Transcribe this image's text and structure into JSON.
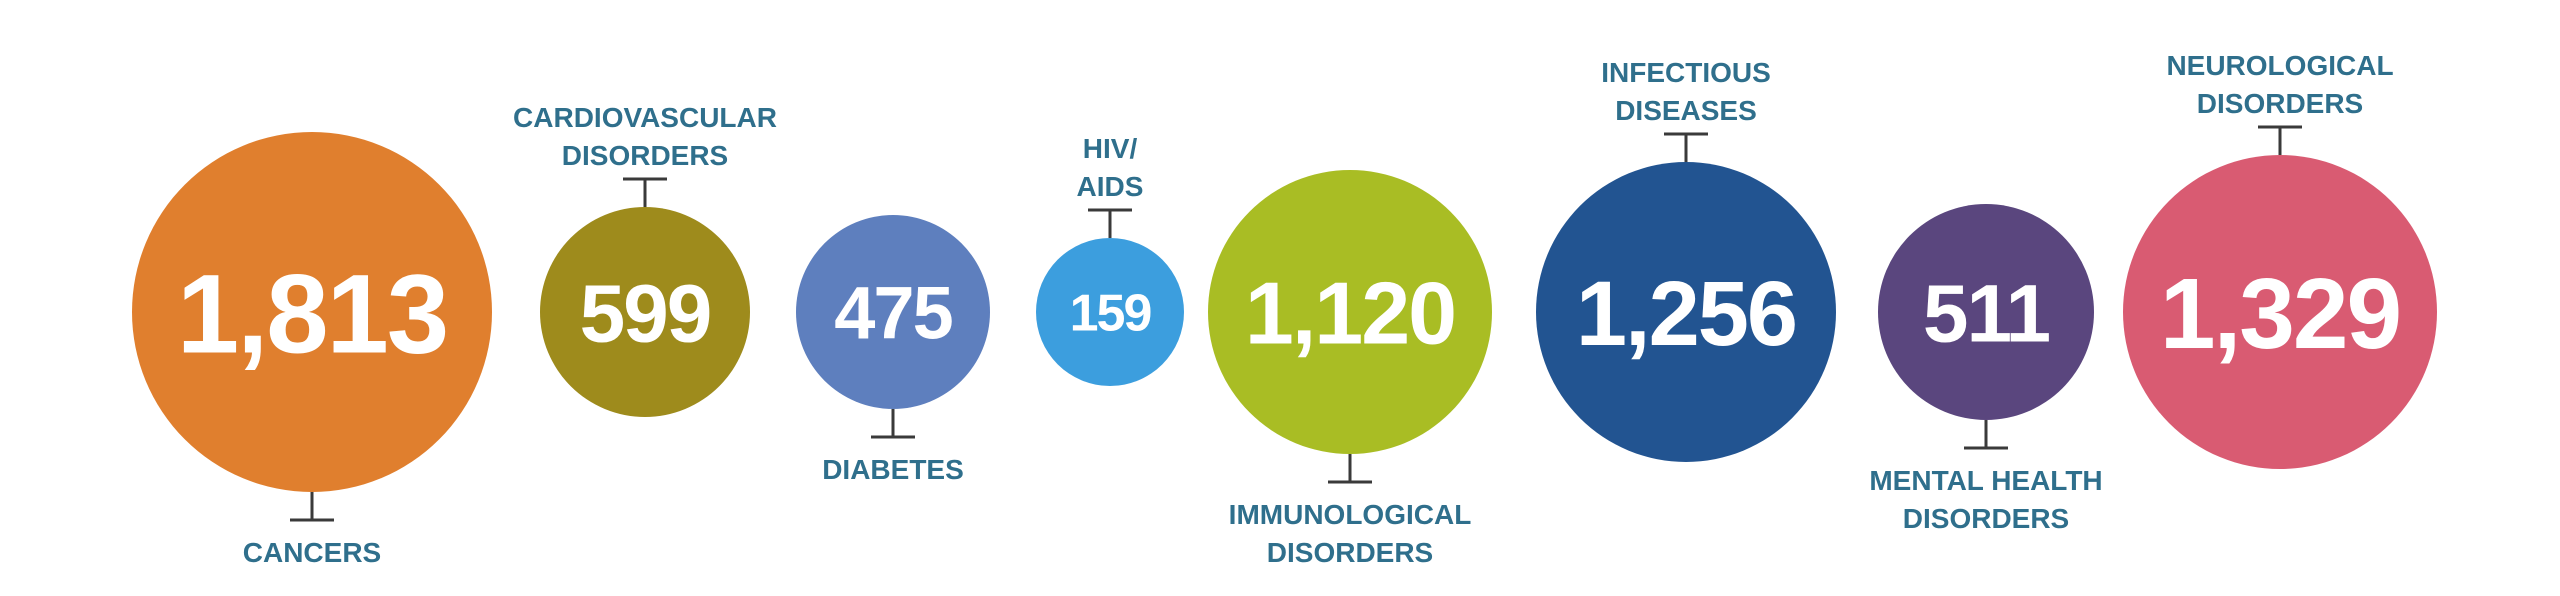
{
  "chart_data": {
    "type": "bubble",
    "categories": [
      {
        "label": [
          "CANCERS"
        ],
        "value": 1813,
        "value_label": "1,813",
        "color": "#e07f2e"
      },
      {
        "label": [
          "CARDIOVASCULAR",
          "DISORDERS"
        ],
        "value": 599,
        "value_label": "599",
        "color": "#9e8b1c"
      },
      {
        "label": [
          "DIABETES"
        ],
        "value": 475,
        "value_label": "475",
        "color": "#5e7fbe"
      },
      {
        "label": [
          "HIV/",
          "AIDS"
        ],
        "value": 159,
        "value_label": "159",
        "color": "#3c9ede"
      },
      {
        "label": [
          "IMMUNOLOGICAL",
          "DISORDERS"
        ],
        "value": 1120,
        "value_label": "1,120",
        "color": "#a9bd24"
      },
      {
        "label": [
          "INFECTIOUS",
          "DISEASES"
        ],
        "value": 1256,
        "value_label": "1,256",
        "color": "#225491"
      },
      {
        "label": [
          "MENTAL HEALTH",
          "DISORDERS"
        ],
        "value": 511,
        "value_label": "511",
        "color": "#5a467e"
      },
      {
        "label": [
          "NEUROLOGICAL",
          "DISORDERS"
        ],
        "value": 1329,
        "value_label": "1,329",
        "color": "#d95b72"
      }
    ],
    "label_color": "#2f6f8c",
    "stem_color": "#3a3a3a"
  }
}
